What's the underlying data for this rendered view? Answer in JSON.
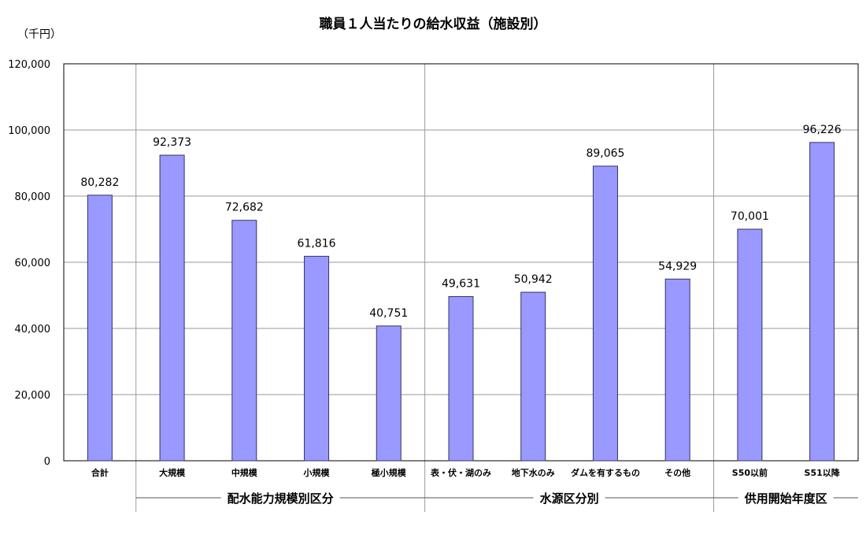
{
  "chart_data": {
    "type": "bar",
    "title": "職員１人当たりの給水収益（施設別）",
    "unit_label": "（千円）",
    "categories": [
      "合計",
      "大規模",
      "中規模",
      "小規模",
      "極小規模",
      "表・伏・湖のみ",
      "地下水のみ",
      "ダムを有するもの",
      "その他",
      "S50以前",
      "S51以降"
    ],
    "values": [
      80282,
      92373,
      72682,
      61816,
      40751,
      49631,
      50942,
      89065,
      54929,
      70001,
      96226
    ],
    "value_labels": [
      "80,282",
      "92,373",
      "72,682",
      "61,816",
      "40,751",
      "49,631",
      "50,942",
      "89,065",
      "54,929",
      "70,001",
      "96,226"
    ],
    "yticks": [
      "0",
      "20,000",
      "40,000",
      "60,000",
      "80,000",
      "100,000",
      "120,000"
    ],
    "ylim": [
      0,
      120000
    ],
    "groups": [
      {
        "label": "配水能力規模別区分",
        "start": 1,
        "end": 4
      },
      {
        "label": "水源区分別",
        "start": 5,
        "end": 8
      },
      {
        "label": "供用開始年度区",
        "start": 9,
        "end": 10
      }
    ],
    "bar_color": "#9999ff",
    "bar_border": "#333366",
    "grid": true
  }
}
